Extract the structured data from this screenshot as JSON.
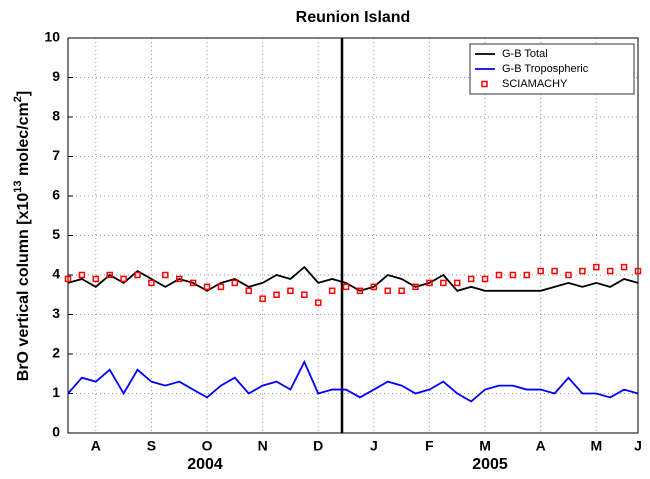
{
  "chart_data": {
    "type": "line",
    "title": "Reunion Island",
    "y_label_parts": [
      "BrO vertical column  [x10",
      "13",
      " molec/cm",
      "2",
      "]"
    ],
    "categories": [
      null,
      null,
      "A",
      null,
      null,
      null,
      "S",
      null,
      null,
      null,
      "O",
      null,
      null,
      null,
      "N",
      null,
      null,
      null,
      "D",
      null,
      null,
      null,
      "J",
      null,
      null,
      null,
      "F",
      null,
      null,
      null,
      "M",
      null,
      null,
      null,
      "A",
      null,
      null,
      null,
      "M",
      null,
      null,
      "J"
    ],
    "year_labels": [
      "2004",
      "2005"
    ],
    "ylim": [
      0,
      10
    ],
    "yticks": [
      0,
      1,
      2,
      3,
      4,
      5,
      6,
      7,
      8,
      9,
      10
    ],
    "grid": true,
    "legend": "upper right",
    "series": [
      {
        "name": "G-B Total",
        "color": "#000000",
        "style": "line",
        "values": [
          3.8,
          3.9,
          3.7,
          4.0,
          3.8,
          4.1,
          3.9,
          3.7,
          3.9,
          3.8,
          3.6,
          3.8,
          3.9,
          3.7,
          3.8,
          4.0,
          3.9,
          4.2,
          3.8,
          3.9,
          3.8,
          3.6,
          3.7,
          4.0,
          3.9,
          3.7,
          3.8,
          4.0,
          3.6,
          3.7,
          3.6,
          3.6,
          3.6,
          3.6,
          3.6,
          3.7,
          3.8,
          3.7,
          3.8,
          3.7,
          3.9,
          3.8
        ]
      },
      {
        "name": "G-B Tropospheric",
        "color": "#0000ff",
        "style": "line",
        "values": [
          1.0,
          1.4,
          1.3,
          1.6,
          1.0,
          1.6,
          1.3,
          1.2,
          1.3,
          1.1,
          0.9,
          1.2,
          1.4,
          1.0,
          1.2,
          1.3,
          1.1,
          1.8,
          1.0,
          1.1,
          1.1,
          0.9,
          1.1,
          1.3,
          1.2,
          1.0,
          1.1,
          1.3,
          1.0,
          0.8,
          1.1,
          1.2,
          1.2,
          1.1,
          1.1,
          1.0,
          1.4,
          1.0,
          1.0,
          0.9,
          1.1,
          1.0
        ]
      },
      {
        "name": "SCIAMACHY",
        "color": "#ff0000",
        "style": "markers",
        "values": [
          3.9,
          4.0,
          3.9,
          4.0,
          3.9,
          4.0,
          3.8,
          4.0,
          3.9,
          3.8,
          3.7,
          3.7,
          3.8,
          3.6,
          3.4,
          3.5,
          3.6,
          3.5,
          3.3,
          3.6,
          3.7,
          3.6,
          3.7,
          3.6,
          3.6,
          3.7,
          3.8,
          3.8,
          3.8,
          3.9,
          3.9,
          4.0,
          4.0,
          4.0,
          4.1,
          4.1,
          4.0,
          4.1,
          4.2,
          4.1,
          4.2,
          4.1
        ]
      }
    ]
  }
}
